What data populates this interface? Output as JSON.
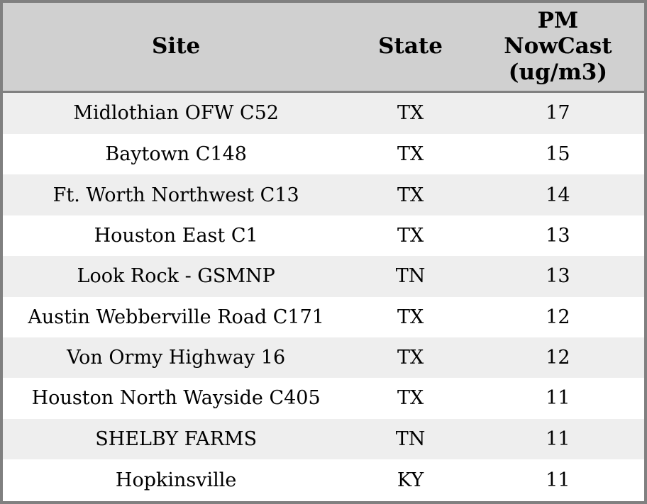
{
  "chart_data": {
    "type": "table",
    "title": "",
    "columns": [
      {
        "key": "site",
        "label": "Site"
      },
      {
        "key": "state",
        "label": "State"
      },
      {
        "key": "pm_nowcast",
        "label": "PM NowCast (ug/m3)"
      }
    ],
    "rows": [
      {
        "site": "Midlothian OFW C52",
        "state": "TX",
        "pm_nowcast": 17
      },
      {
        "site": "Baytown C148",
        "state": "TX",
        "pm_nowcast": 15
      },
      {
        "site": "Ft. Worth Northwest C13",
        "state": "TX",
        "pm_nowcast": 14
      },
      {
        "site": "Houston East C1",
        "state": "TX",
        "pm_nowcast": 13
      },
      {
        "site": "Look Rock - GSMNP",
        "state": "TN",
        "pm_nowcast": 13
      },
      {
        "site": "Austin Webberville Road C171",
        "state": "TX",
        "pm_nowcast": 12
      },
      {
        "site": "Von Ormy Highway 16",
        "state": "TX",
        "pm_nowcast": 12
      },
      {
        "site": "Houston North Wayside C405",
        "state": "TX",
        "pm_nowcast": 11
      },
      {
        "site": "SHELBY FARMS",
        "state": "TN",
        "pm_nowcast": 11
      },
      {
        "site": "Hopkinsville",
        "state": "KY",
        "pm_nowcast": 11
      }
    ],
    "layout": {
      "zebra_striping": true,
      "all_cells_centered": true,
      "header_lines": [
        "PM",
        "NowCast",
        "(ug/m3)"
      ]
    }
  },
  "colors": {
    "outer_border": "#808080",
    "header_bg": "#d0d0d0",
    "header_separator": "#808080",
    "row_stripe": "#eeeeee",
    "row_plain": "#ffffff",
    "text": "#000000"
  }
}
